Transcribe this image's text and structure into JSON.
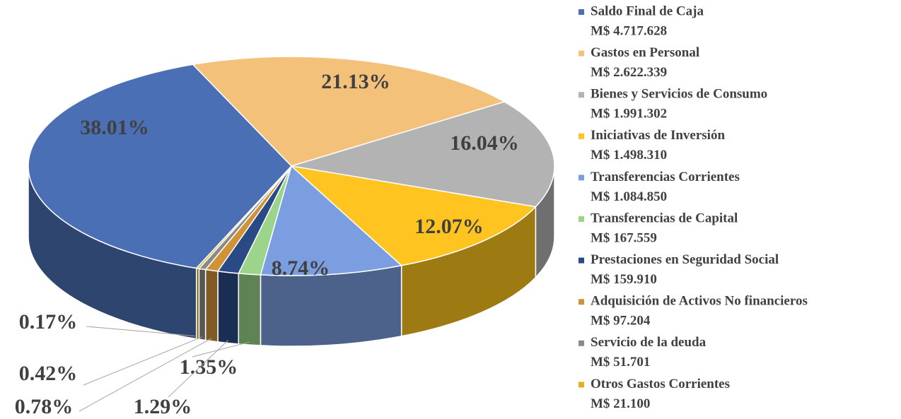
{
  "chart_data": {
    "type": "pie",
    "categories": [
      "Saldo Final de Caja",
      "Gastos en Personal",
      "Bienes y Servicios de Consumo",
      "Iniciativas de Inversión",
      "Transferencias Corrientes",
      "Transferencias de Capital",
      "Prestaciones en Seguridad Social",
      "Adquisición de Activos No financieros",
      "Servicio de la deuda",
      "Otros Gastos Corrientes"
    ],
    "legend_amounts": [
      "M$ 4.717.628",
      "M$ 2.622.339",
      "M$ 1.991.302",
      "M$ 1.498.310",
      "M$ 1.084.850",
      "M$ 167.559",
      "M$ 159.910",
      "M$ 97.204",
      "M$ 51.701",
      "M$ 21.100"
    ],
    "values": [
      38.01,
      21.13,
      16.04,
      12.07,
      8.74,
      1.35,
      1.29,
      0.78,
      0.42,
      0.17
    ],
    "value_labels": [
      "38.01%",
      "21.13%",
      "16.04%",
      "12.07%",
      "8.74%",
      "1.35%",
      "1.29%",
      "0.78%",
      "0.42%",
      "0.17%"
    ],
    "colors": [
      "#4a6fb5",
      "#f3c17a",
      "#b3b3b3",
      "#ffc41f",
      "#7b9ee0",
      "#9bd48a",
      "#2a4a86",
      "#cf9236",
      "#8a8a8a",
      "#e0b020"
    ]
  }
}
